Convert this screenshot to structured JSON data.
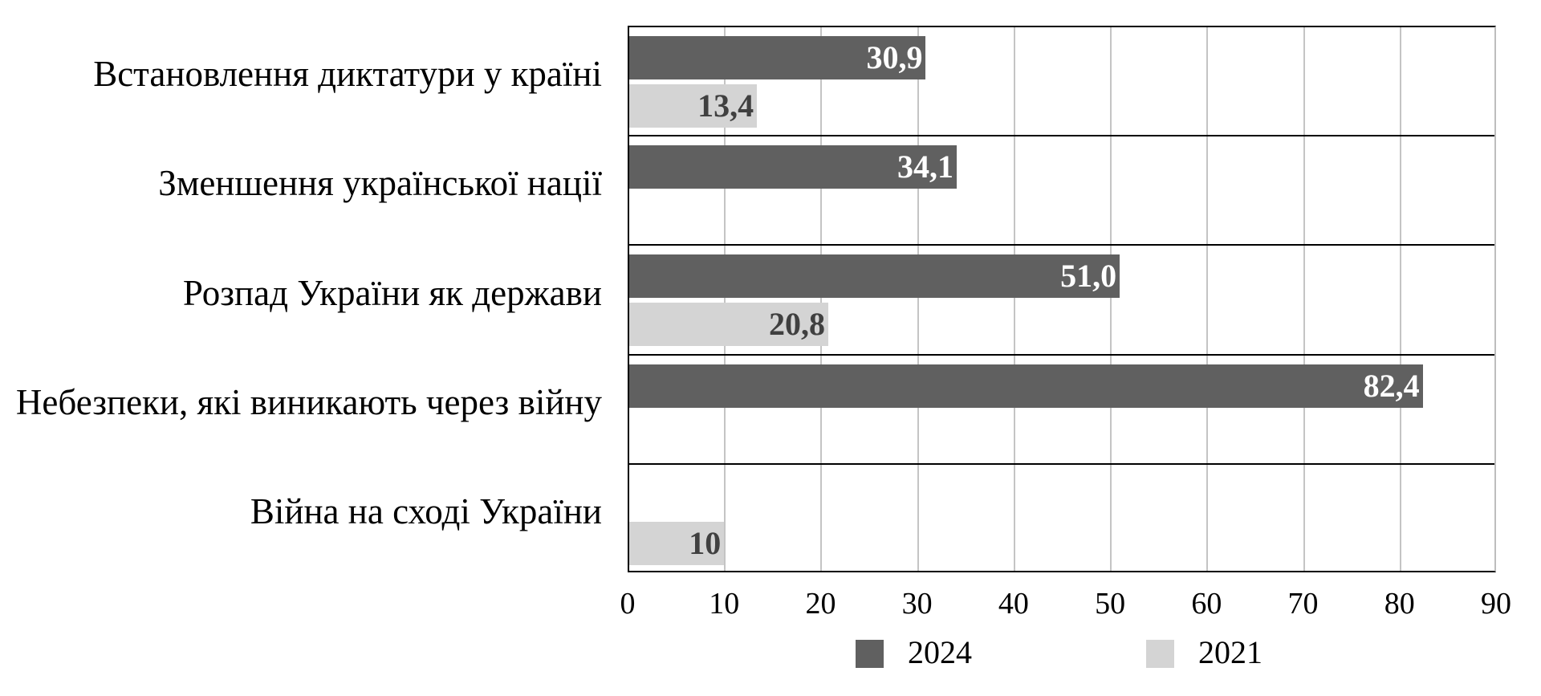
{
  "chart_data": {
    "type": "bar",
    "orientation": "horizontal",
    "title": "",
    "xlabel": "",
    "ylabel": "",
    "xlim": [
      0,
      90
    ],
    "x_ticks": [
      0,
      10,
      20,
      30,
      40,
      50,
      60,
      70,
      80,
      90
    ],
    "grid": {
      "vertical": true,
      "category_separators": true
    },
    "legend_position": "bottom",
    "categories": [
      "Встановлення диктатури у країні",
      "Зменшення української нації",
      "Розпад України як держави",
      "Небезпеки, які виникають через війну",
      "Війна на сході України"
    ],
    "series": [
      {
        "name": "2024",
        "color": "#606060",
        "label_color": "#ffffff",
        "values": [
          30.9,
          34.1,
          51.0,
          82.4,
          null
        ],
        "labels": [
          "30,9",
          "34,1",
          "51,0",
          "82,4",
          ""
        ]
      },
      {
        "name": "2021",
        "color": "#d4d4d4",
        "label_color": "#404040",
        "values": [
          13.4,
          null,
          20.8,
          null,
          10
        ],
        "labels": [
          "13,4",
          "",
          "20,8",
          "",
          "10"
        ]
      }
    ]
  },
  "tick_labels": [
    "0",
    "10",
    "20",
    "30",
    "40",
    "50",
    "60",
    "70",
    "80",
    "90"
  ],
  "legend": [
    {
      "label": "2024",
      "color": "#606060"
    },
    {
      "label": "2021",
      "color": "#d4d4d4"
    }
  ]
}
